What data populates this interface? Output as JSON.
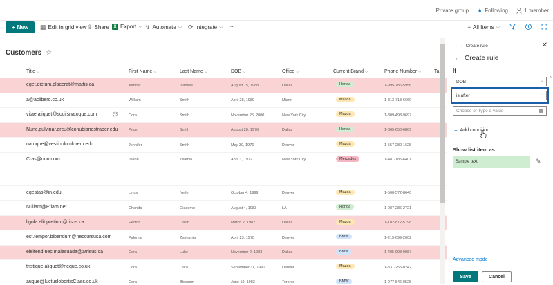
{
  "topbar": {
    "group": "Private group",
    "following": "Following",
    "members": "1 member"
  },
  "commands": {
    "new": "New",
    "grid": "Edit in grid view",
    "share": "Share",
    "export": "Export",
    "automate": "Automate",
    "integrate": "Integrate",
    "more": "···",
    "view": "All Items",
    "filter_icon": "filter-icon",
    "info_icon": "info-icon",
    "expand_icon": "expand-icon"
  },
  "list": {
    "title": "Customers",
    "columns": [
      "Title",
      "First Name",
      "Last Name",
      "DOB",
      "Office",
      "Current Brand",
      "Phone Number",
      "Ta"
    ],
    "rows": [
      {
        "title": "eget.dictum.placerat@mattis.ca",
        "first": "Xander",
        "last": "Isabelle",
        "dob": "August 15, 1988",
        "office": "Dallas",
        "brand": "Honda",
        "phone": "1-995-786-5956",
        "hl": true,
        "comment": false
      },
      {
        "title": "a@aclibero.co.uk",
        "first": "William",
        "last": "Smith",
        "dob": "April 28, 1989",
        "office": "Miami",
        "brand": "Mazda",
        "phone": "1-813-718-6669",
        "hl": false,
        "comment": false
      },
      {
        "title": "vitae.aliquet@sociisnatoque.com",
        "first": "Cora",
        "last": "Smith",
        "dob": "November 25, 2000",
        "office": "New York City",
        "brand": "Mazda",
        "phone": "1-309-493-9697",
        "hl": false,
        "comment": true
      },
      {
        "title": "Nunc.pulvinar.arcu@conubianostraper.edu",
        "first": "Price",
        "last": "Smith",
        "dob": "August 28, 1976",
        "office": "Dallas",
        "brand": "Honda",
        "phone": "1-865-650-6869",
        "hl": true,
        "comment": false
      },
      {
        "title": "natoque@vestibulumlorem.edu",
        "first": "Jennifer",
        "last": "Smith",
        "dob": "May 30, 1976",
        "office": "Denver",
        "brand": "Mazda",
        "phone": "1-557-280-1625",
        "hl": false,
        "comment": false
      },
      {
        "title": "Cras@non.com",
        "first": "Jason",
        "last": "Zelenia",
        "dob": "April 1, 1972",
        "office": "New York City",
        "brand": "Mercedes",
        "phone": "1-481-185-6401",
        "hl": false,
        "comment": false,
        "tall": true
      },
      {
        "title": "egestas@in.edu",
        "first": "Linus",
        "last": "Nelle",
        "dob": "October 4, 1999",
        "office": "Denver",
        "brand": "Mazda",
        "phone": "1-500-572-8640",
        "hl": false,
        "comment": false
      },
      {
        "title": "Nullam@Etiam.net",
        "first": "Chanda",
        "last": "Giacomo",
        "dob": "August 4, 1983",
        "office": "LA",
        "brand": "Honda",
        "phone": "1-987-286-2721",
        "hl": false,
        "comment": false
      },
      {
        "title": "ligula.elit.pretium@risus.ca",
        "first": "Hector",
        "last": "Cailin",
        "dob": "March 2, 1982",
        "office": "Dallas",
        "brand": "Mazda",
        "phone": "1-102-812-5798",
        "hl": true,
        "comment": false
      },
      {
        "title": "est.tempor.bibendum@neccursusa.com",
        "first": "Paloma",
        "last": "Zephania",
        "dob": "April 23, 1970",
        "office": "Denver",
        "brand": "BMW",
        "phone": "1-215-699-2002",
        "hl": false,
        "comment": false
      },
      {
        "title": "eleifend.nec.malesuada@atrisus.ca",
        "first": "Cora",
        "last": "Luke",
        "dob": "November 2, 1983",
        "office": "Dallas",
        "brand": "BMW",
        "phone": "1-405-998-9987",
        "hl": true,
        "comment": false
      },
      {
        "title": "tristique.aliquet@neque.co.uk",
        "first": "Cora",
        "last": "Dara",
        "dob": "September 11, 1990",
        "office": "Denver",
        "brand": "Mazda",
        "phone": "1-831-255-0242",
        "hl": false,
        "comment": false
      },
      {
        "title": "augue@luctuslobortisClass.co.uk",
        "first": "Cora",
        "last": "Blossom",
        "dob": "June 19, 1983",
        "office": "Toronto",
        "brand": "BMW",
        "phone": "1-977-846-8525",
        "hl": false,
        "comment": false
      }
    ]
  },
  "brand_colors": {
    "Honda": "#cfedd1",
    "Mazda": "#fde7b3",
    "Mercedes": "#f4b6c2",
    "BMW": "#cfe4fa"
  },
  "panel": {
    "breadcrumb_more": "···",
    "breadcrumb": "Create rule",
    "title": "Create rule",
    "if_label": "If",
    "field_value": "DOB",
    "operator_value": "is after",
    "value_placeholder": "Choose or Type a value",
    "add_condition": "Add condition",
    "show_as": "Show list item as",
    "sample_text": "Sample text",
    "advanced_mode": "Advanced mode",
    "save": "Save",
    "cancel": "Cancel"
  }
}
